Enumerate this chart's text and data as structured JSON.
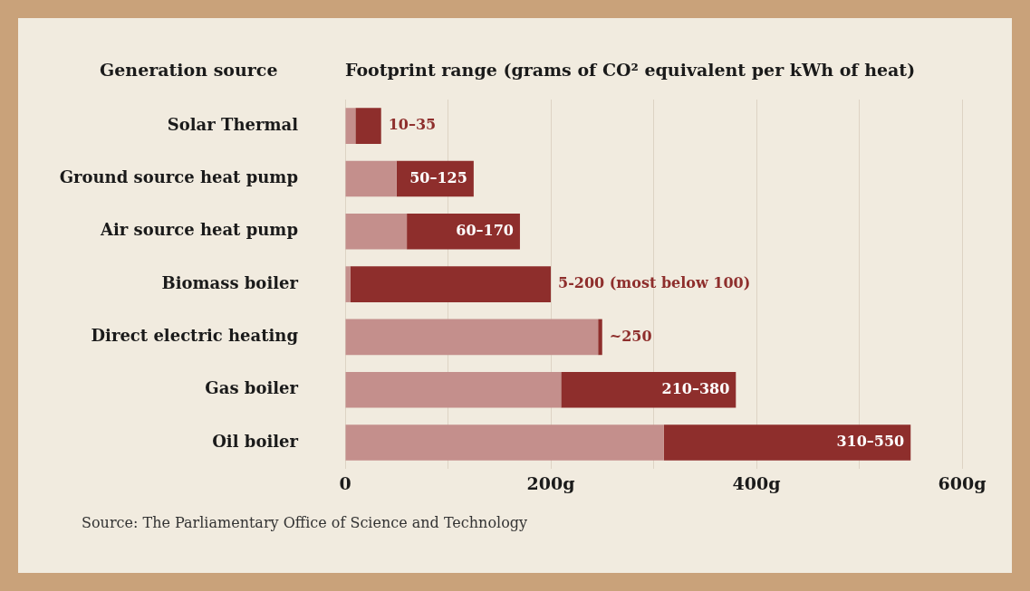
{
  "chart_data": {
    "type": "bar",
    "orientation": "horizontal",
    "stacked": true,
    "title": "Footprint range (grams of CO² equivalent per kWh of heat)",
    "ylabel": "Generation source",
    "categories": [
      "Solar Thermal",
      "Ground source heat pump",
      "Air source heat pump",
      "Biomass boiler",
      "Direct electric heating",
      "Gas boiler",
      "Oil boiler"
    ],
    "series": [
      {
        "color": "#c48f8c",
        "values": [
          10,
          50,
          60,
          5,
          246,
          210,
          310
        ]
      },
      {
        "color": "#8e2e2c",
        "values": [
          25,
          75,
          110,
          195,
          4,
          170,
          240
        ]
      }
    ],
    "xlim": [
      0,
      600
    ],
    "xticks": [
      0,
      {
        "value": 100,
        "label": null
      },
      {
        "value": 200,
        "label": "200g"
      },
      {
        "value": 300,
        "label": null
      },
      {
        "value": 400,
        "label": "400g"
      },
      {
        "value": 500,
        "label": null
      },
      {
        "value": 600,
        "label": "600g"
      }
    ],
    "grid": "x",
    "legend": false,
    "annotations": [
      {
        "text": "10–35",
        "x": 35,
        "y": "Solar Thermal"
      },
      {
        "text": "50–125",
        "x": 125,
        "y": "Ground source heat pump"
      },
      {
        "text": "60–170",
        "x": 170,
        "y": "Air source heat pump"
      },
      {
        "text": "5-200 (most below 100)",
        "x": 200,
        "y": "Biomass boiler"
      },
      {
        "text": "~250",
        "x": 250,
        "y": "Direct electric heating"
      },
      {
        "text": "210–380",
        "x": 380,
        "y": "Gas boiler"
      },
      {
        "text": "310–550",
        "x": 550,
        "y": "Oil boiler"
      },
      "Source: The Parliamentary Office of Science and Technology"
    ]
  }
}
